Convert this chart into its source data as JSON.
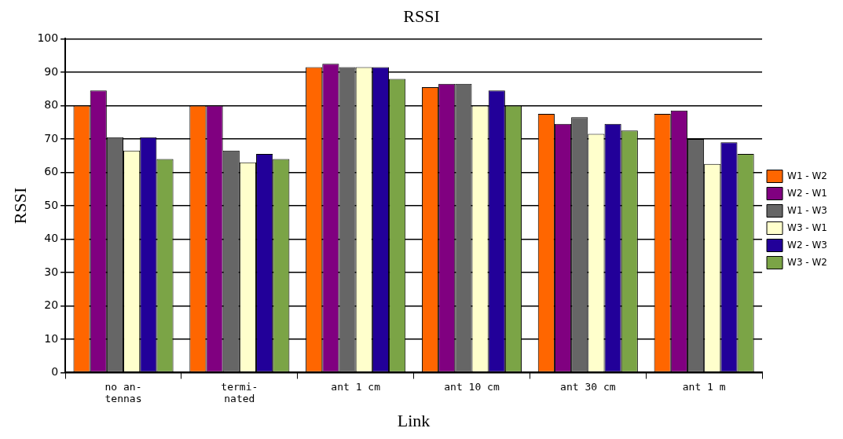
{
  "chart_data": {
    "type": "bar",
    "title": "RSSI",
    "xlabel": "Link",
    "ylabel": "RSSI",
    "categories": [
      "no an-\ntennas",
      "termi-\nnated",
      "ant 1 cm",
      "ant 10 cm",
      "ant 30 cm",
      "ant 1 m"
    ],
    "series": [
      {
        "name": "W1 - W2",
        "color": "#ff6600",
        "values": [
          80,
          80,
          91.5,
          85.5,
          77.5,
          77.5
        ]
      },
      {
        "name": "W2 - W1",
        "color": "#800080",
        "values": [
          84.5,
          80,
          92.5,
          86.5,
          74.5,
          78.5
        ]
      },
      {
        "name": "W1 - W3",
        "color": "#666666",
        "values": [
          70.5,
          66.5,
          91.5,
          86.5,
          76.5,
          70
        ]
      },
      {
        "name": "W3 - W1",
        "color": "#ffffcc",
        "values": [
          66.5,
          63,
          91.5,
          80,
          71.5,
          62.5
        ]
      },
      {
        "name": "W2 - W3",
        "color": "#220099",
        "values": [
          70.5,
          65.5,
          91.5,
          84.5,
          74.5,
          69
        ]
      },
      {
        "name": "W3 - W2",
        "color": "#7ba446",
        "values": [
          64,
          64,
          88,
          80,
          72.5,
          65.5
        ]
      }
    ],
    "ylim": [
      0,
      100
    ],
    "yticks": [
      0,
      10,
      20,
      30,
      40,
      50,
      60,
      70,
      80,
      90,
      100
    ],
    "grid": "y",
    "legend": "right"
  }
}
